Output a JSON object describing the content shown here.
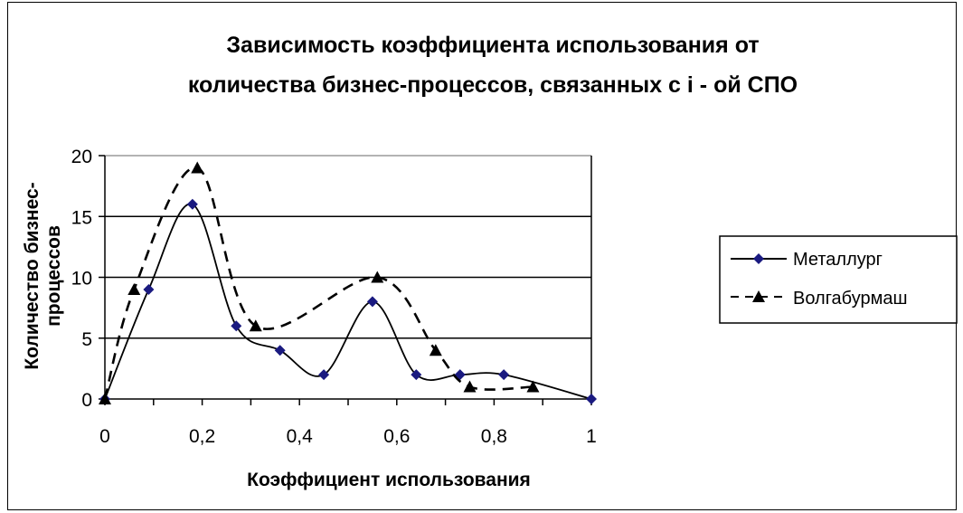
{
  "chart_data": {
    "type": "line",
    "title_lines": [
      "Зависимость коэффициента использования от",
      "количества бизнес-процессов, связанных с i -   ой СПО"
    ],
    "xlabel": "Коэффициент использования",
    "ylabel_lines": [
      "Количество бизнес-",
      "процессов"
    ],
    "xlim": [
      0,
      1
    ],
    "ylim": [
      0,
      20
    ],
    "x_ticks": [
      "0",
      "0,2",
      "0,4",
      "0,6",
      "0,8",
      "1"
    ],
    "y_ticks": [
      "0",
      "5",
      "10",
      "15",
      "20"
    ],
    "grid": true,
    "legend_position": "right",
    "series": [
      {
        "name": "Металлург",
        "marker": "diamond",
        "line_style": "solid",
        "color": "#000000",
        "marker_color": "#1a1a80",
        "x": [
          0,
          0.09,
          0.18,
          0.27,
          0.36,
          0.45,
          0.55,
          0.64,
          0.73,
          0.82,
          1.0
        ],
        "y": [
          0,
          9,
          16,
          6,
          4,
          2,
          8,
          2,
          2,
          2,
          0
        ]
      },
      {
        "name": "Волгабурмаш",
        "marker": "triangle",
        "line_style": "dashed",
        "color": "#000000",
        "marker_color": "#000000",
        "x": [
          0,
          0.06,
          0.19,
          0.31,
          0.56,
          0.68,
          0.75,
          0.88
        ],
        "y": [
          0,
          9,
          19,
          6,
          10,
          4,
          1,
          1
        ]
      }
    ]
  }
}
